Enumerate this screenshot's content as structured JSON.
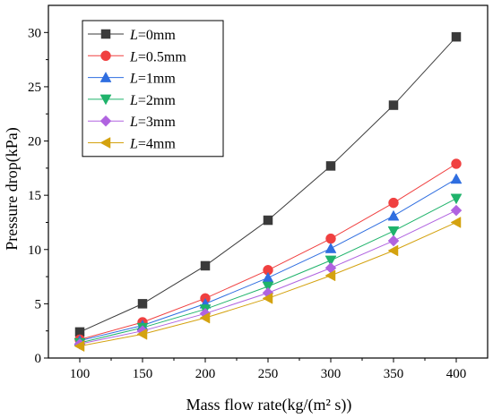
{
  "chart_data": {
    "type": "line",
    "title": "",
    "xlabel": "Mass flow rate(kg/(m² s))",
    "ylabel": "Pressure drop(kPa)",
    "xlim": [
      75,
      425
    ],
    "ylim": [
      0,
      32.5
    ],
    "x_ticks": [
      100,
      150,
      200,
      250,
      300,
      350,
      400
    ],
    "y_ticks": [
      0,
      5,
      10,
      15,
      20,
      25,
      30
    ],
    "grid": false,
    "legend_position": "top-left",
    "x": [
      100,
      150,
      200,
      250,
      300,
      350,
      400
    ],
    "series": [
      {
        "name": "L=0mm",
        "var": "L",
        "rest": "=0mm",
        "color": "#3a3a3a",
        "marker": "square",
        "values": [
          2.4,
          5.0,
          8.5,
          12.7,
          17.7,
          23.3,
          29.6
        ]
      },
      {
        "name": "L=0.5mm",
        "var": "L",
        "rest": "=0.5mm",
        "color": "#f04040",
        "marker": "circle",
        "values": [
          1.7,
          3.3,
          5.5,
          8.1,
          11.0,
          14.3,
          17.9
        ]
      },
      {
        "name": "L=1mm",
        "var": "L",
        "rest": "=1mm",
        "color": "#2f6ee0",
        "marker": "triangle-up",
        "values": [
          1.6,
          3.0,
          5.0,
          7.4,
          10.1,
          13.1,
          16.5
        ]
      },
      {
        "name": "L=2mm",
        "var": "L",
        "rest": "=2mm",
        "color": "#1fb36b",
        "marker": "triangle-down",
        "values": [
          1.4,
          2.8,
          4.5,
          6.6,
          9.0,
          11.7,
          14.7
        ]
      },
      {
        "name": "L=3mm",
        "var": "L",
        "rest": "=3mm",
        "color": "#b063e0",
        "marker": "diamond",
        "values": [
          1.3,
          2.5,
          4.1,
          6.0,
          8.3,
          10.8,
          13.6
        ]
      },
      {
        "name": "L=4mm",
        "var": "L",
        "rest": "=4mm",
        "color": "#d4a20f",
        "marker": "triangle-left",
        "values": [
          1.1,
          2.2,
          3.7,
          5.5,
          7.6,
          9.9,
          12.5
        ]
      }
    ]
  }
}
